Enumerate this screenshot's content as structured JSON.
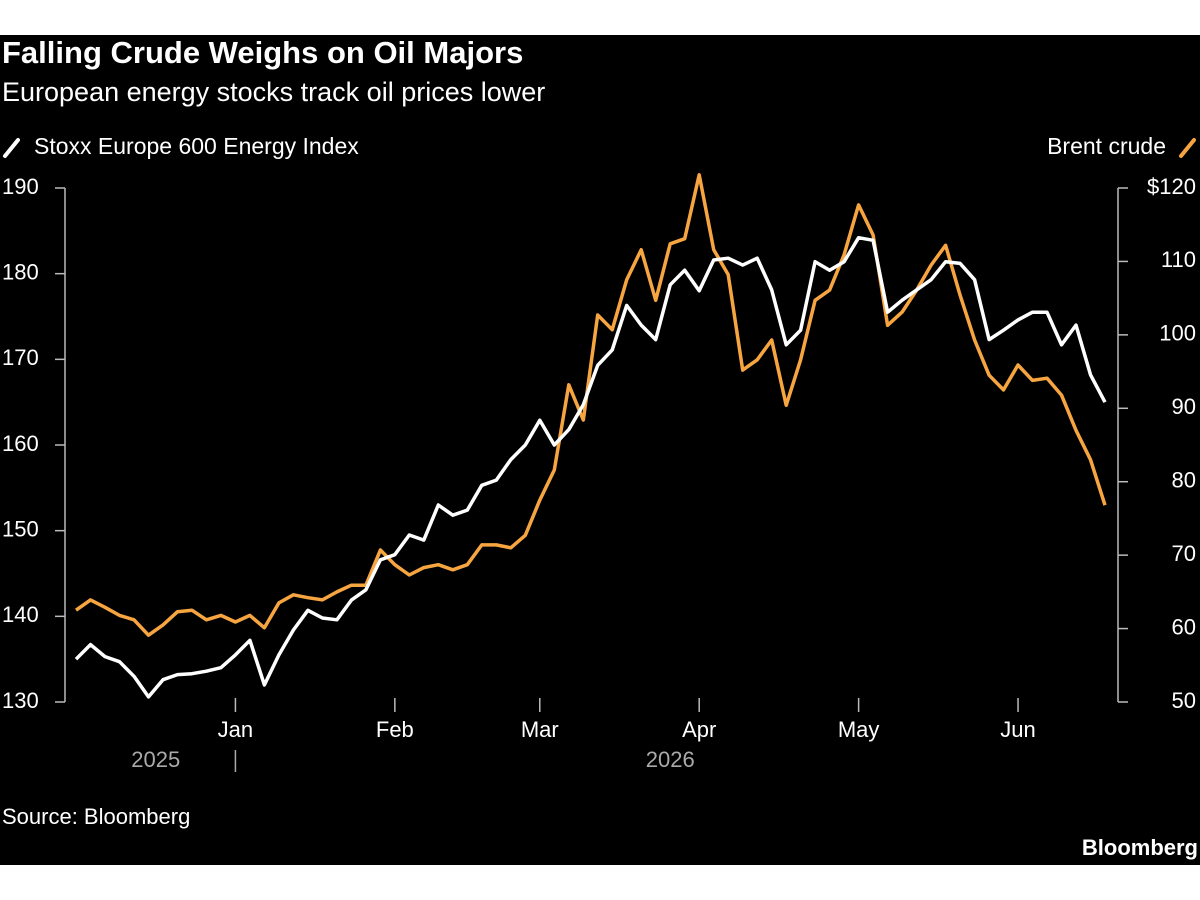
{
  "chart_data": {
    "type": "line",
    "title": "Falling Crude Weighs on Oil Majors",
    "subtitle": "European energy stocks track oil prices lower",
    "source": "Source: Bloomberg",
    "brand": "Bloomberg",
    "x_groups": [
      "2025",
      "2026"
    ],
    "categories": [
      null,
      null,
      null,
      null,
      null,
      null,
      null,
      null,
      null,
      null,
      null,
      "Jan",
      null,
      null,
      null,
      null,
      null,
      null,
      null,
      null,
      null,
      null,
      "Feb",
      null,
      null,
      null,
      null,
      null,
      null,
      null,
      null,
      null,
      "Mar",
      null,
      null,
      null,
      null,
      null,
      null,
      null,
      null,
      null,
      null,
      "Apr",
      null,
      null,
      null,
      null,
      null,
      null,
      null,
      null,
      null,
      null,
      "May",
      null,
      null,
      null,
      null,
      null,
      null,
      null,
      null,
      null,
      null,
      "Jun",
      null,
      null,
      null,
      null,
      null,
      null
    ],
    "series": [
      {
        "name": "Stoxx Europe 600 Energy Index",
        "color": "#ffffff",
        "axis": "y",
        "values": [
          135,
          136.7,
          135.3,
          134.7,
          133,
          130.6,
          132.6,
          133.2,
          133.3,
          133.6,
          134,
          135.5,
          137.2,
          132,
          135.5,
          138.4,
          140.7,
          139.8,
          139.6,
          141.9,
          143.1,
          146.6,
          147.2,
          149.5,
          148.9,
          153,
          151.8,
          152.4,
          155.3,
          155.9,
          158.3,
          160,
          162.9,
          160,
          161.8,
          164.7,
          169.3,
          171.1,
          176.3,
          174,
          172.3,
          178.7,
          180.4,
          178,
          181.6,
          181.8,
          181,
          181.8,
          178.1,
          171.7,
          173.4,
          181.4,
          180.4,
          181.4,
          184.2,
          183.9,
          175.5,
          176.9,
          178.1,
          179.3,
          181.4,
          181.2,
          179.3,
          172.3,
          173.4,
          174.6,
          175.5,
          175.5,
          171.7,
          174,
          168.2,
          165
        ]
      },
      {
        "name": "Brent crude",
        "color": "#f7a540",
        "axis": "y2",
        "values": [
          62.5,
          63.9,
          62.9,
          61.8,
          61.2,
          59.1,
          60.5,
          62.3,
          62.5,
          61.2,
          61.8,
          60.9,
          61.8,
          60.1,
          63.5,
          64.6,
          64.2,
          63.9,
          65,
          65.9,
          65.9,
          70.7,
          68.7,
          67.3,
          68.3,
          68.7,
          68,
          68.7,
          71.4,
          71.4,
          71,
          72.7,
          77.5,
          81.6,
          93.2,
          88.4,
          102.7,
          100.7,
          107.5,
          111.6,
          104.7,
          112.4,
          113.1,
          121.8,
          111.6,
          108.2,
          95.2,
          96.6,
          99.3,
          90.4,
          96.6,
          104.7,
          106.1,
          110.9,
          117.7,
          113.6,
          101.3,
          103.1,
          106.1,
          109.5,
          112.2,
          105.4,
          99.3,
          94.5,
          92.5,
          95.9,
          93.8,
          94.1,
          91.8,
          87,
          83,
          76.8
        ]
      }
    ],
    "ylim": [
      130,
      190
    ],
    "yticks": [
      130,
      140,
      150,
      160,
      170,
      180,
      190
    ],
    "y2lim": [
      50,
      120
    ],
    "y2ticks": [
      50,
      60,
      70,
      80,
      90,
      100,
      110,
      {
        "value": 120,
        "label": "$120"
      }
    ],
    "legend": "top"
  }
}
